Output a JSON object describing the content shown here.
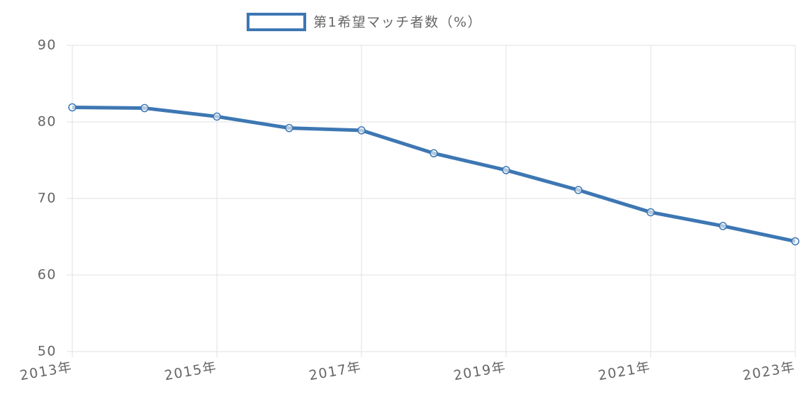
{
  "chart_data": {
    "type": "line",
    "categories": [
      "2013年",
      null,
      "2015年",
      null,
      "2017年",
      null,
      "2019年",
      null,
      "2021年",
      null,
      "2023年"
    ],
    "series": [
      {
        "name": "第1希望マッチ者数（%）",
        "color": "#3d77b3",
        "values": [
          81.9,
          81.8,
          80.7,
          79.2,
          78.9,
          75.9,
          73.7,
          71.1,
          68.2,
          66.4,
          64.4
        ]
      }
    ],
    "ylim": [
      50,
      90
    ],
    "yticks": [
      50,
      60,
      70,
      80,
      90
    ],
    "grid": true
  }
}
